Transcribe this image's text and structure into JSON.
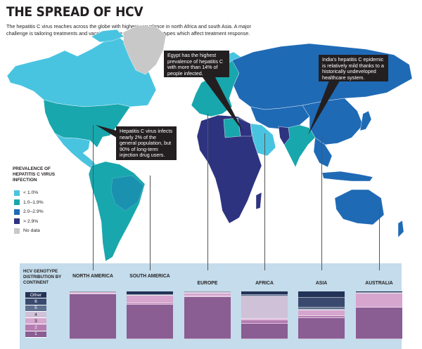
{
  "title": "THE SPREAD OF HCV",
  "intro": "The hepatitis C virus reaches across the globe with highest prevalence in north Africa and south Asia. A major challenge is tailoring treatments and vaccines to the various viral genotypes which affect treatment response.",
  "colors": {
    "lt1": "#49c4e0",
    "mid": "#18a7ad",
    "high": "#1f6ab5",
    "vhigh": "#2e3380",
    "nodata": "#c8c8c8",
    "panel": "#c4dceb",
    "g1": "#8a5d93",
    "g2": "#b57cb1",
    "g3": "#d6a6cf",
    "g4": "#cfc1d8",
    "g5": "#5d6e8e",
    "g6": "#3a4a6e",
    "other": "#233257"
  },
  "callouts": {
    "egypt": "Egypt has the highest prevalence of hepatitis C with more than 14% of people infected.",
    "india": "India's hepatitis C epidemic is relatively mild thanks to a historically undeveloped healthcare system.",
    "usa": "Hepatitis C virus infects nearly 2% of the general population, but 90% of long-term injection drug users."
  },
  "legend": {
    "title": "PREVALENCE OF HEPATITIS C VIRUS INFECTION",
    "items": [
      {
        "label": "< 1.0%",
        "color": "#49c4e0"
      },
      {
        "label": "1.0–1.9%",
        "color": "#18a7ad"
      },
      {
        "label": "2.0–2.9%",
        "color": "#1f6ab5"
      },
      {
        "label": "> 2.9%",
        "color": "#2e3380"
      },
      {
        "label": "No data",
        "color": "#c8c8c8"
      }
    ]
  },
  "genotype_panel": {
    "title": "HCV GENOTYPE DISTRIBUTION BY CONTINENT",
    "key": [
      "Other",
      "6",
      "5",
      "4",
      "3",
      "2",
      "1"
    ]
  },
  "chart_data": {
    "type": "bar",
    "stacked": true,
    "title": "HCV GENOTYPE DISTRIBUTION BY CONTINENT",
    "categories": [
      "NORTH AMERICA",
      "SOUTH AMERICA",
      "EUROPE",
      "AFRICA",
      "ASIA",
      "AUSTRALIA"
    ],
    "series": [
      {
        "name": "1",
        "values": [
          94,
          72,
          88,
          33,
          44,
          67
        ]
      },
      {
        "name": "2",
        "values": [
          2,
          4,
          2,
          7,
          4,
          0
        ]
      },
      {
        "name": "3",
        "values": [
          2,
          16,
          6,
          2,
          12,
          29
        ]
      },
      {
        "name": "4",
        "values": [
          0,
          1,
          2,
          48,
          2,
          1
        ]
      },
      {
        "name": "5",
        "values": [
          0,
          0,
          0,
          3,
          4,
          0
        ]
      },
      {
        "name": "6",
        "values": [
          0,
          0,
          0,
          0,
          21,
          0
        ]
      },
      {
        "name": "Other",
        "values": [
          2,
          7,
          2,
          7,
          13,
          3
        ]
      }
    ],
    "ylim": [
      0,
      100
    ]
  }
}
